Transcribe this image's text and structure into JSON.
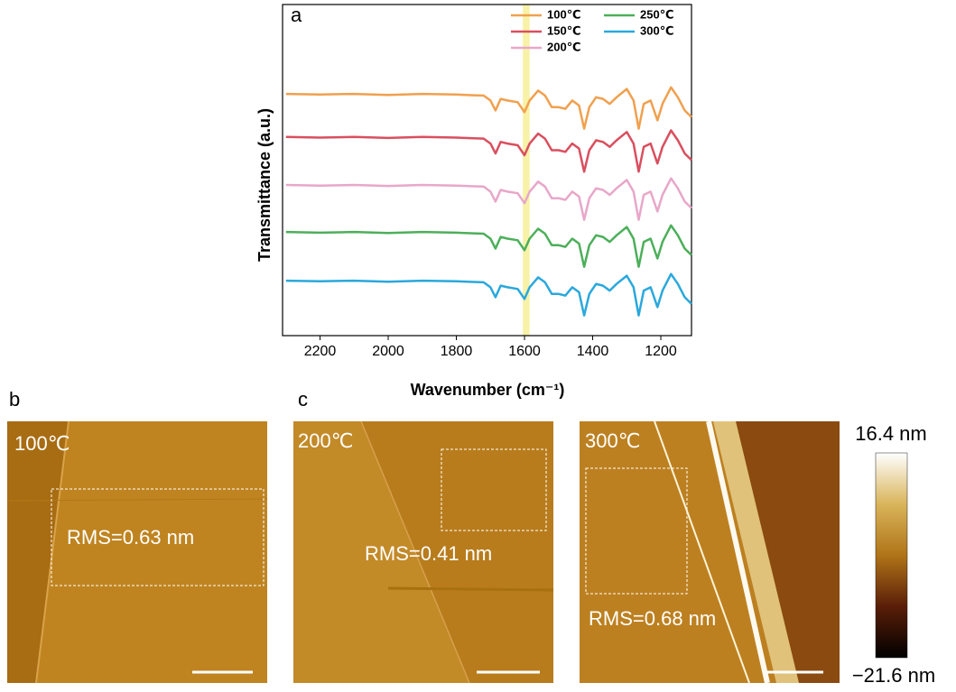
{
  "chart_data": {
    "type": "line",
    "panel_label": "a",
    "x_label": "Wavenumber (cm⁻¹)",
    "y_label": "Transmittance (a.u.)",
    "x": [
      2300,
      2200,
      2100,
      2000,
      1900,
      1800,
      1750,
      1720,
      1700,
      1685,
      1670,
      1650,
      1620,
      1600,
      1585,
      1560,
      1540,
      1520,
      1500,
      1480,
      1460,
      1440,
      1425,
      1410,
      1390,
      1370,
      1350,
      1330,
      1300,
      1280,
      1265,
      1250,
      1230,
      1210,
      1195,
      1170,
      1150,
      1130,
      1110
    ],
    "series": [
      {
        "name": "100℃",
        "color": "#f0a04e",
        "values": [
          7.3,
          7.28,
          7.3,
          7.27,
          7.3,
          7.28,
          7.26,
          7.25,
          7.1,
          6.8,
          7.15,
          7.1,
          7.05,
          6.75,
          7.1,
          7.4,
          7.25,
          6.9,
          6.9,
          6.85,
          7.1,
          6.95,
          6.25,
          6.9,
          7.2,
          7.15,
          7,
          7.2,
          7.45,
          7.1,
          6.25,
          7,
          7.1,
          6.5,
          7,
          7.5,
          7.2,
          6.8,
          6.6
        ]
      },
      {
        "name": "150℃",
        "color": "#d94f5f",
        "values": [
          6,
          5.98,
          6,
          5.97,
          6,
          5.98,
          5.96,
          5.95,
          5.8,
          5.5,
          5.85,
          5.8,
          5.75,
          5.45,
          5.8,
          6.1,
          5.95,
          5.6,
          5.6,
          5.55,
          5.8,
          5.65,
          4.95,
          5.6,
          5.9,
          5.85,
          5.7,
          5.9,
          6.15,
          5.8,
          4.95,
          5.7,
          5.8,
          5.2,
          5.7,
          6.2,
          5.9,
          5.5,
          5.3
        ]
      },
      {
        "name": "200℃",
        "color": "#e8a7c9",
        "values": [
          4.55,
          4.53,
          4.55,
          4.52,
          4.55,
          4.53,
          4.51,
          4.5,
          4.35,
          4.05,
          4.4,
          4.35,
          4.3,
          4,
          4.35,
          4.65,
          4.5,
          4.15,
          4.15,
          4.1,
          4.35,
          4.2,
          3.5,
          4.15,
          4.45,
          4.4,
          4.25,
          4.45,
          4.7,
          4.35,
          3.5,
          4.25,
          4.35,
          3.75,
          4.25,
          4.75,
          4.45,
          4.05,
          3.85
        ]
      },
      {
        "name": "250℃",
        "color": "#4caf5a",
        "values": [
          3.13,
          3.11,
          3.13,
          3.1,
          3.13,
          3.11,
          3.09,
          3.08,
          2.93,
          2.63,
          2.98,
          2.93,
          2.88,
          2.58,
          2.93,
          3.23,
          3.08,
          2.73,
          2.73,
          2.68,
          2.93,
          2.78,
          2.08,
          2.73,
          3.03,
          2.98,
          2.83,
          3.03,
          3.28,
          2.93,
          2.08,
          2.83,
          2.93,
          2.33,
          2.83,
          3.33,
          3.03,
          2.63,
          2.43
        ]
      },
      {
        "name": "300℃",
        "color": "#2aa8dc",
        "values": [
          1.66,
          1.64,
          1.66,
          1.63,
          1.66,
          1.64,
          1.62,
          1.61,
          1.46,
          1.16,
          1.51,
          1.46,
          1.41,
          1.11,
          1.46,
          1.76,
          1.61,
          1.26,
          1.26,
          1.21,
          1.46,
          1.31,
          0.61,
          1.26,
          1.56,
          1.51,
          1.36,
          1.56,
          1.81,
          1.46,
          0.61,
          1.36,
          1.46,
          0.86,
          1.36,
          1.86,
          1.56,
          1.16,
          0.96
        ]
      }
    ],
    "xlim": [
      2310,
      1110
    ],
    "xticks": [
      2200,
      2000,
      1800,
      1600,
      1400,
      1200
    ],
    "ylim": [
      0,
      10
    ],
    "highlight": {
      "from": 1605,
      "to": 1585,
      "color": "#f8f2a8"
    },
    "legend": "upper right"
  },
  "afm": {
    "panel_labels": [
      "b",
      "c"
    ],
    "images": [
      {
        "temperature": "100℃",
        "rms": "RMS=0.63 nm"
      },
      {
        "temperature": "200℃",
        "rms": "RMS=0.41 nm"
      },
      {
        "temperature": "300℃",
        "rms": "RMS=0.68 nm"
      }
    ],
    "colorbar": {
      "max_label": "16.4 nm",
      "min_label": "−21.6 nm"
    }
  }
}
